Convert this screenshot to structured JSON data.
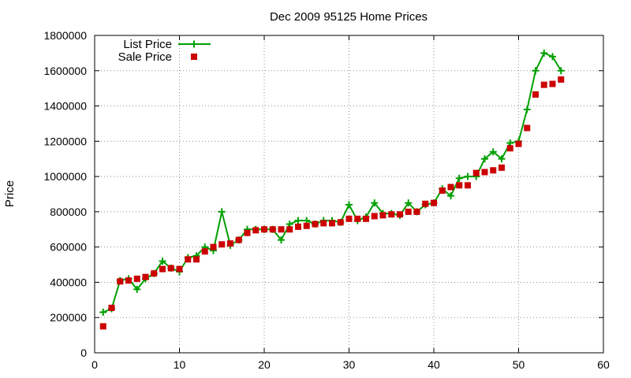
{
  "chart_data": {
    "type": "line",
    "title": "Dec 2009 95125 Home Prices",
    "xlabel": "",
    "ylabel": "Price",
    "xlim": [
      0,
      60
    ],
    "ylim": [
      0,
      1800000
    ],
    "xticks": [
      0,
      10,
      20,
      30,
      40,
      50,
      60
    ],
    "yticks": [
      0,
      200000,
      400000,
      600000,
      800000,
      1000000,
      1200000,
      1400000,
      1600000,
      1800000
    ],
    "grid": true,
    "grid_style": "dotted",
    "legend_position": "top-left",
    "series": [
      {
        "name": "List Price",
        "style": "line+cross",
        "color": "#00a000",
        "x": [
          1,
          2,
          3,
          4,
          5,
          6,
          7,
          8,
          9,
          10,
          11,
          12,
          13,
          14,
          15,
          16,
          17,
          18,
          19,
          20,
          21,
          22,
          23,
          24,
          25,
          26,
          27,
          28,
          29,
          30,
          31,
          32,
          33,
          34,
          35,
          36,
          37,
          38,
          39,
          40,
          41,
          42,
          43,
          44,
          45,
          46,
          47,
          48,
          49,
          50,
          51,
          52,
          53,
          54,
          55
        ],
        "y": [
          230000,
          250000,
          410000,
          420000,
          360000,
          420000,
          450000,
          520000,
          480000,
          460000,
          540000,
          550000,
          600000,
          580000,
          800000,
          610000,
          640000,
          700000,
          700000,
          700000,
          700000,
          640000,
          730000,
          750000,
          750000,
          730000,
          750000,
          750000,
          740000,
          840000,
          750000,
          770000,
          850000,
          790000,
          790000,
          780000,
          850000,
          800000,
          840000,
          850000,
          930000,
          890000,
          990000,
          1000000,
          1000000,
          1100000,
          1140000,
          1100000,
          1190000,
          1200000,
          1380000,
          1600000,
          1700000,
          1680000,
          1600000
        ]
      },
      {
        "name": "Sale Price",
        "style": "square",
        "color": "#cc0000",
        "x": [
          1,
          2,
          3,
          4,
          5,
          6,
          7,
          8,
          9,
          10,
          11,
          12,
          13,
          14,
          15,
          16,
          17,
          18,
          19,
          20,
          21,
          22,
          23,
          24,
          25,
          26,
          27,
          28,
          29,
          30,
          31,
          32,
          33,
          34,
          35,
          36,
          37,
          38,
          39,
          40,
          41,
          42,
          43,
          44,
          45,
          46,
          47,
          48,
          49,
          50,
          51,
          52,
          53,
          54,
          55
        ],
        "y": [
          150000,
          255000,
          405000,
          410000,
          420000,
          430000,
          450000,
          475000,
          480000,
          475000,
          530000,
          530000,
          575000,
          600000,
          615000,
          620000,
          640000,
          680000,
          695000,
          700000,
          700000,
          700000,
          700000,
          715000,
          720000,
          730000,
          735000,
          735000,
          740000,
          760000,
          760000,
          760000,
          775000,
          780000,
          785000,
          785000,
          800000,
          800000,
          845000,
          850000,
          920000,
          940000,
          950000,
          950000,
          1020000,
          1025000,
          1035000,
          1050000,
          1160000,
          1185000,
          1275000,
          1465000,
          1520000,
          1525000,
          1550000
        ]
      }
    ]
  }
}
